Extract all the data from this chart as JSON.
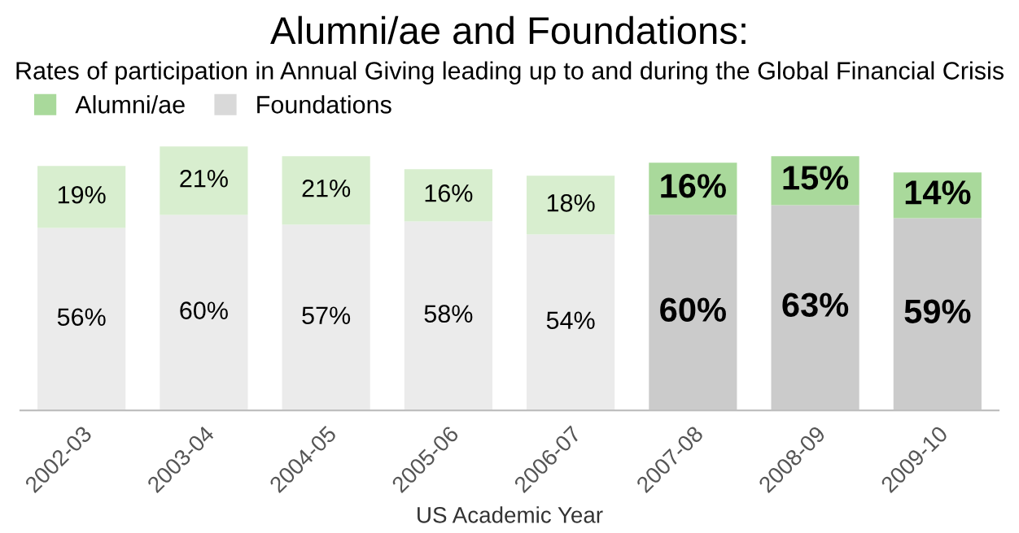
{
  "chart_data": {
    "type": "bar",
    "stacked": true,
    "title": "Alumni/ae and Foundations:",
    "subtitle": "Rates of participation in Annual Giving leading up to and during the Global Financial Crisis",
    "xlabel": "US Academic Year",
    "categories": [
      "2002-03",
      "2003-04",
      "2004-05",
      "2005-06",
      "2006-07",
      "2007-08",
      "2008-09",
      "2009-10"
    ],
    "series": [
      {
        "name": "Foundations",
        "color": "#d9d9d9",
        "colors": [
          "#ebebeb",
          "#ebebeb",
          "#ebebeb",
          "#ebebeb",
          "#ebebeb",
          "#cbcbcb",
          "#cbcbcb",
          "#cbcbcb"
        ],
        "values": [
          56,
          60,
          57,
          58,
          54,
          60,
          63,
          59
        ],
        "value_labels": [
          "56%",
          "60%",
          "57%",
          "58%",
          "54%",
          "60%",
          "63%",
          "59%"
        ]
      },
      {
        "name": "Alumni/ae",
        "color": "#a9d99b",
        "colors": [
          "#d8eecf",
          "#d8eecf",
          "#d8eecf",
          "#d8eecf",
          "#d8eecf",
          "#a9d99b",
          "#a9d99b",
          "#a9d99b"
        ],
        "values": [
          19,
          21,
          21,
          16,
          18,
          16,
          15,
          14
        ],
        "value_labels": [
          "19%",
          "21%",
          "21%",
          "16%",
          "18%",
          "16%",
          "15%",
          "14%"
        ]
      }
    ],
    "legend": "top left"
  }
}
